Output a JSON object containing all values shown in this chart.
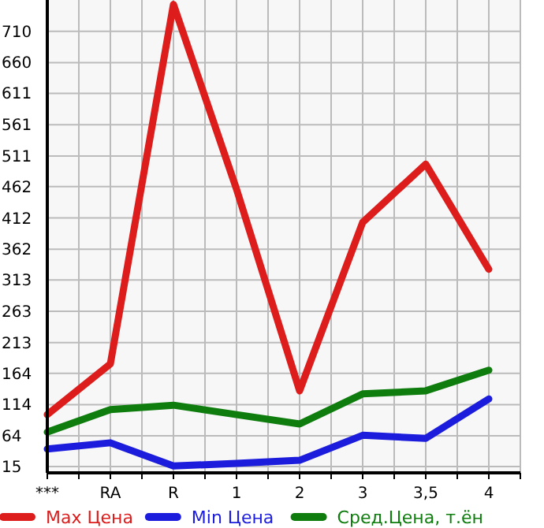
{
  "chart_data": {
    "type": "line",
    "categories": [
      "***",
      "RA",
      "R",
      "1",
      "2",
      "3",
      "3,5",
      "4"
    ],
    "series": [
      {
        "name": "Max Цена",
        "color": "#dd1c1c",
        "values": [
          98,
          179,
          753,
          458,
          136,
          405,
          498,
          330
        ]
      },
      {
        "name": "Min Цена",
        "color": "#1c1cdd",
        "values": [
          43,
          53,
          16,
          20,
          25,
          65,
          60,
          123
        ]
      },
      {
        "name": "Сред.Цена, т.ён",
        "color": "#0e7d0e",
        "values": [
          70,
          106,
          113,
          98,
          83,
          131,
          136,
          169
        ]
      }
    ],
    "ylim": [
      5,
      760
    ],
    "yticks": [
      15,
      64,
      114,
      164,
      213,
      263,
      313,
      362,
      412,
      462,
      511,
      561,
      611,
      660,
      710
    ],
    "grid": true,
    "legend": "bottom",
    "marker": "none",
    "line_style": "solid"
  }
}
